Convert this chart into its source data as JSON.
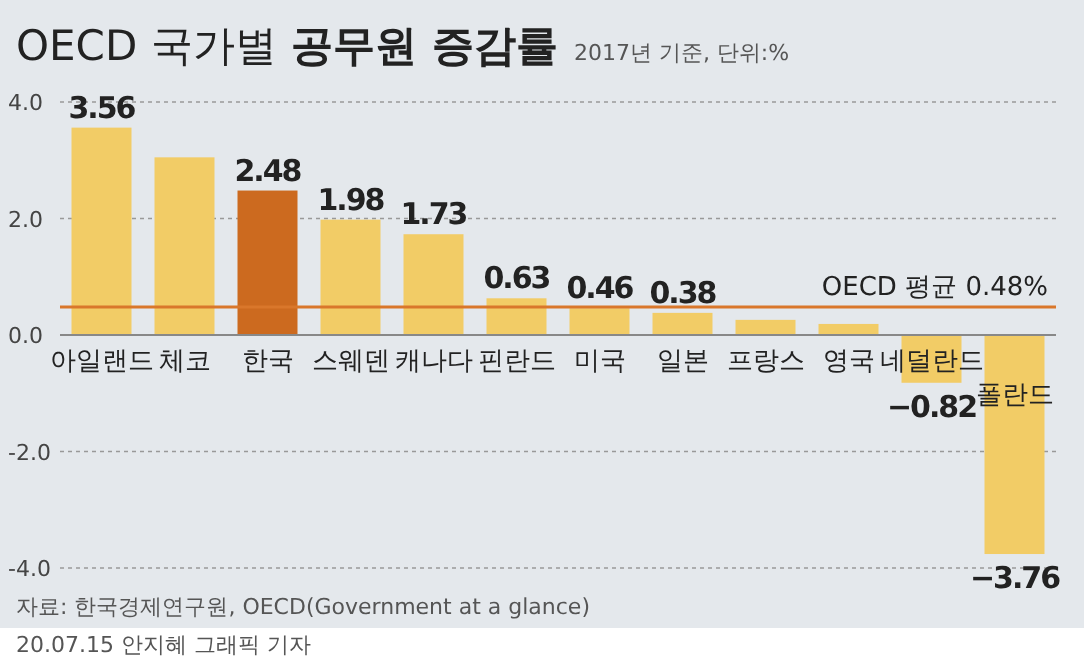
{
  "chart_data": {
    "type": "bar",
    "title": "OECD 국가별 공무원 증감률",
    "subtitle": "2017년 기준, 단위:%",
    "categories": [
      "아일랜드",
      "체코",
      "한국",
      "스웨덴",
      "캐나다",
      "핀란드",
      "미국",
      "일본",
      "프랑스",
      "영국",
      "네덜란드",
      "폴란드"
    ],
    "values": [
      3.56,
      3.05,
      2.48,
      1.98,
      1.73,
      0.63,
      0.46,
      0.38,
      0.26,
      0.19,
      -0.82,
      -3.76
    ],
    "colors": [
      "#f2cc66",
      "#f2cc66",
      "#cc6a1f",
      "#f2cc66",
      "#f2cc66",
      "#f2cc66",
      "#f2cc66",
      "#f2cc66",
      "#f2cc66",
      "#f2cc66",
      "#f2cc66",
      "#f2cc66"
    ],
    "value_labels": [
      "3.56",
      null,
      "2.48",
      "1.98",
      "1.73",
      "0.63",
      "0.46",
      "0.38",
      null,
      null,
      "−0.82",
      "−3.76"
    ],
    "ylim": [
      -4,
      4
    ],
    "yticks": [
      {
        "value": 4,
        "label": "4.0"
      },
      {
        "value": 2,
        "label": "2.0"
      },
      {
        "value": 0,
        "label": "0.0"
      },
      {
        "value": -2,
        "label": "-2.0"
      },
      {
        "value": -4,
        "label": "-4.0"
      }
    ],
    "grid": "y",
    "ref_lines": [
      {
        "axis": "y",
        "value": 0.48,
        "label": "OECD 평균 0.48%",
        "color": "#d9772b"
      }
    ],
    "annotations": [
      "자료: 한국경제연구원, OECD(Government at a glance)",
      "20.07.15 안지혜 그래픽 기자"
    ]
  }
}
